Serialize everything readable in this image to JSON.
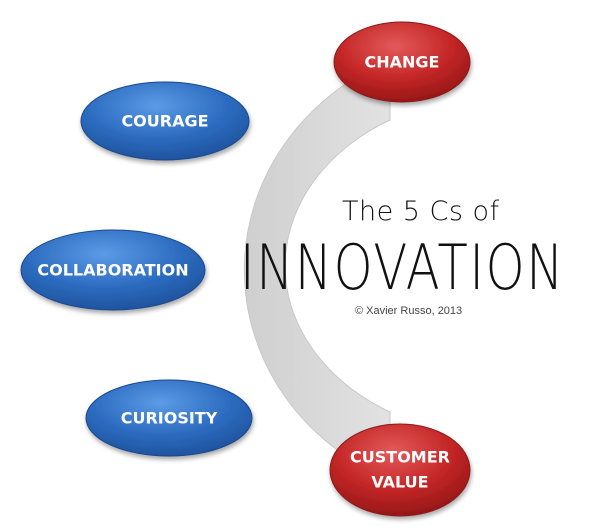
{
  "diagram": {
    "title": "The 5 Cs of",
    "headline": "INNOVATION",
    "copyright": "© Xavier Russo, 2013",
    "nodes": [
      {
        "id": "change",
        "label": "CHANGE",
        "color": "red"
      },
      {
        "id": "courage",
        "label": "COURAGE",
        "color": "blue"
      },
      {
        "id": "collaboration",
        "label": "COLLABORATION",
        "color": "blue"
      },
      {
        "id": "curiosity",
        "label": "CURIOSITY",
        "color": "blue"
      },
      {
        "id": "customer-value",
        "label_line1": "CUSTOMER",
        "label_line2": "VALUE",
        "color": "red"
      }
    ]
  },
  "colors": {
    "arc": "#d9d9d9",
    "blue_node": "#2f6fc3",
    "red_node": "#c62a2a",
    "text": "#111111"
  }
}
